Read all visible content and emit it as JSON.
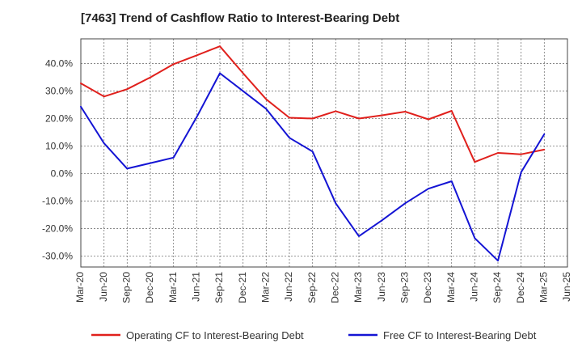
{
  "chart_data": {
    "type": "line",
    "title": "[7463]  Trend of Cashflow Ratio to Interest-Bearing Debt",
    "x": [
      "Mar-20",
      "Jun-20",
      "Sep-20",
      "Dec-20",
      "Mar-21",
      "Jun-21",
      "Sep-21",
      "Dec-21",
      "Mar-22",
      "Jun-22",
      "Sep-22",
      "Dec-22",
      "Mar-23",
      "Jun-23",
      "Sep-23",
      "Dec-23",
      "Mar-24",
      "Jun-24",
      "Sep-24",
      "Dec-24",
      "Mar-25",
      "Jun-25"
    ],
    "ylim": [
      -34,
      49
    ],
    "yticks": [
      40,
      30,
      20,
      10,
      0,
      -10,
      -20,
      -30
    ],
    "ytick_labels": [
      "40.0%",
      "30.0%",
      "20.0%",
      "10.0%",
      "0.0%",
      "-10.0%",
      "-20.0%",
      "-30.0%"
    ],
    "grid": true,
    "legend_position": "bottom",
    "series": [
      {
        "name": "Operating CF to Interest-Bearing Debt",
        "color": "#e0201c",
        "values": [
          32.8,
          28.0,
          30.7,
          35.0,
          39.8,
          43.0,
          46.3,
          36.5,
          27.0,
          20.3,
          20.0,
          22.7,
          20.0,
          21.2,
          22.5,
          19.7,
          22.8,
          4.2,
          7.5,
          7.0,
          8.7,
          null
        ]
      },
      {
        "name": "Free CF to Interest-Bearing Debt",
        "color": "#1414d4",
        "values": [
          24.3,
          11.0,
          1.8,
          3.8,
          5.8,
          20.5,
          36.5,
          30.0,
          23.5,
          13.0,
          8.0,
          -10.8,
          -22.8,
          -17.0,
          -10.8,
          -5.5,
          -2.8,
          -23.5,
          -31.7,
          0.5,
          14.3,
          null
        ]
      }
    ]
  }
}
